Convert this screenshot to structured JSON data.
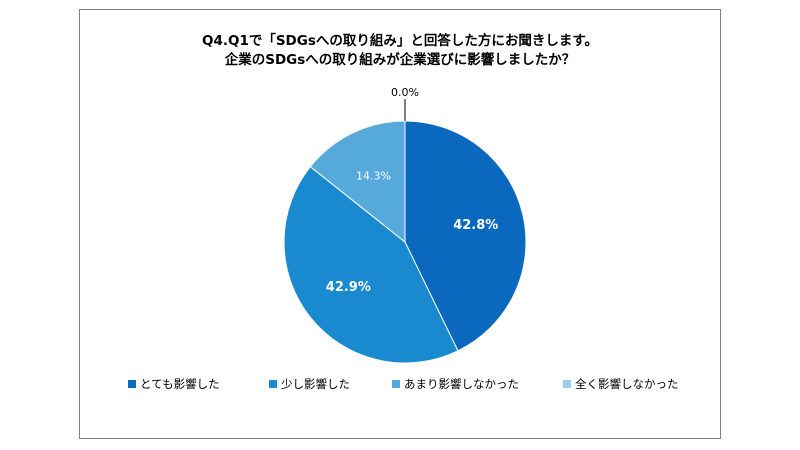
{
  "chart_data": {
    "type": "pie",
    "title_line1": "Q4.Q1で「SDGsへの取り組み」と回答した方にお聞きします。",
    "title_line2": "企業のSDGsへの取り組みが企業選びに影響しましたか？",
    "categories": [
      "とても影響した",
      "少し影響した",
      "あまり影響しなかった",
      "全く影響しなかった"
    ],
    "values": [
      42.8,
      42.9,
      14.3,
      0.0
    ],
    "labels": [
      "42.8%",
      "42.9%",
      "14.3%",
      "0.0%"
    ],
    "colors": [
      "#0a69bf",
      "#1a8ad0",
      "#56a9db",
      "#9ecdeb"
    ],
    "legend_position": "bottom"
  }
}
